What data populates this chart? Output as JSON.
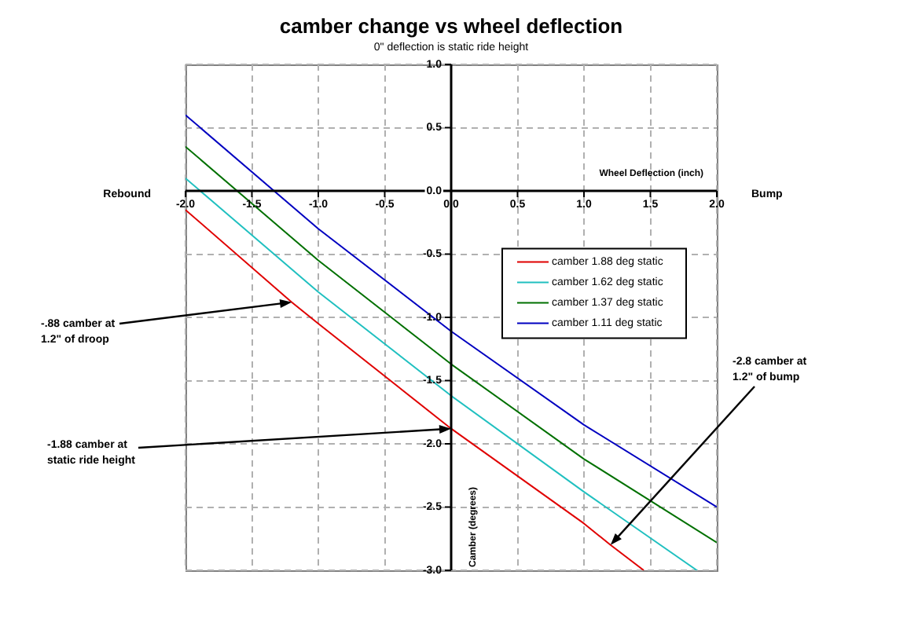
{
  "chart_data": {
    "type": "line",
    "title": "camber change vs wheel deflection",
    "subtitle": "0\" deflection is static ride height",
    "xlabel": "Wheel Deflection (inch)",
    "ylabel": "Camber (degrees)",
    "xlim": [
      -2,
      2
    ],
    "xticks": [
      {
        "value": -2,
        "label": "-2.0"
      },
      {
        "value": -1.5,
        "label": "-1.5"
      },
      {
        "value": -1,
        "label": "-1.0"
      },
      {
        "value": -0.5,
        "label": "-0.5"
      },
      {
        "value": 0,
        "label": "0.0"
      },
      {
        "value": 0.5,
        "label": "0.5"
      },
      {
        "value": 1,
        "label": "1.0"
      },
      {
        "value": 1.5,
        "label": "1.5"
      },
      {
        "value": 2,
        "label": "2.0"
      }
    ],
    "ylim": [
      -3,
      1
    ],
    "yticks": [
      {
        "value": -3,
        "label": "-3.0"
      },
      {
        "value": -2.5,
        "label": "-2.5"
      },
      {
        "value": -2,
        "label": "-2.0"
      },
      {
        "value": -1.5,
        "label": "-1.5"
      },
      {
        "value": -1,
        "label": "-1.0"
      },
      {
        "value": -0.5,
        "label": "-0.5"
      },
      {
        "value": 0,
        "label": "0.0"
      },
      {
        "value": 0.5,
        "label": "0.5"
      },
      {
        "value": 1,
        "label": "1.0"
      }
    ],
    "grid": true,
    "legend": "top right",
    "marker": "none",
    "line_style": "solid",
    "series": [
      {
        "name": "camber 1.88 deg static",
        "color": "#e00000",
        "x": [
          -2,
          -1.2,
          -1,
          0,
          1,
          1.2,
          1.45
        ],
        "values": [
          -0.15,
          -0.88,
          -1.05,
          -1.88,
          -2.63,
          -2.8,
          -3
        ]
      },
      {
        "name": "camber 1.62 deg static",
        "color": "#20c0c0",
        "x": [
          -2,
          -1,
          0,
          1,
          1.85
        ],
        "values": [
          0.1,
          -0.8,
          -1.62,
          -2.38,
          -3
        ]
      },
      {
        "name": "camber 1.37 deg static",
        "color": "#007000",
        "x": [
          -2,
          -1,
          0,
          1,
          2
        ],
        "values": [
          0.35,
          -0.55,
          -1.37,
          -2.12,
          -2.78
        ]
      },
      {
        "name": "camber 1.11 deg static",
        "color": "#0000c0",
        "x": [
          -2,
          -1,
          0,
          1,
          2
        ],
        "values": [
          0.6,
          -0.3,
          -1.11,
          -1.85,
          -2.5
        ]
      }
    ],
    "annotations": [
      {
        "text": "-.88 camber at 1.2\" of droop",
        "x": -1.2,
        "y": -0.88
      },
      {
        "text": "-1.88 camber at static ride height",
        "x": 0,
        "y": -1.88
      },
      {
        "text": "-2.8 camber at 1.2\" of bump",
        "x": 1.2,
        "y": -2.8
      },
      "Rebound",
      "Bump"
    ]
  }
}
